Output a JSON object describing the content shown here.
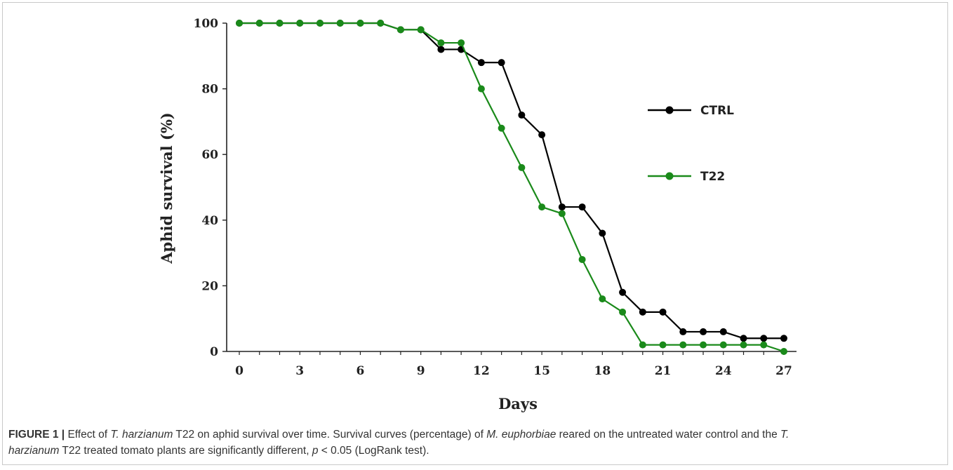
{
  "chart_data": {
    "type": "line",
    "xlabel": "Days",
    "ylabel": "Aphid survival (%)",
    "xlim": [
      0,
      27
    ],
    "ylim": [
      0,
      100
    ],
    "xticks": [
      0,
      3,
      6,
      9,
      12,
      15,
      18,
      21,
      24,
      27
    ],
    "yticks": [
      0,
      20,
      40,
      60,
      80,
      100
    ],
    "x": [
      0,
      1,
      2,
      3,
      4,
      5,
      6,
      7,
      8,
      9,
      10,
      11,
      12,
      13,
      14,
      15,
      16,
      17,
      18,
      19,
      20,
      21,
      22,
      23,
      24,
      25,
      26,
      27
    ],
    "grid": false,
    "legend_position": "top-right",
    "series": [
      {
        "name": "CTRL",
        "color": "#000000",
        "values": [
          100,
          100,
          100,
          100,
          100,
          100,
          100,
          100,
          98,
          98,
          92,
          92,
          88,
          88,
          72,
          66,
          44,
          44,
          36,
          18,
          12,
          12,
          6,
          6,
          6,
          4,
          4,
          4
        ]
      },
      {
        "name": "T22",
        "color": "#1a8a1a",
        "values": [
          100,
          100,
          100,
          100,
          100,
          100,
          100,
          100,
          98,
          98,
          94,
          94,
          80,
          68,
          56,
          44,
          42,
          28,
          16,
          12,
          2,
          2,
          2,
          2,
          2,
          2,
          2,
          0
        ]
      }
    ]
  },
  "caption": {
    "label": "FIGURE 1 |",
    "p1": " Effect of ",
    "i1": "T. harzianum",
    "p2": " T22 on aphid survival over time. Survival curves (percentage) of ",
    "i2": "M. euphorbiae",
    "p3": " reared on the untreated water control and the ",
    "i3": "T.",
    "p4": "",
    "i4": "harzianum",
    "p5": " T22 treated tomato plants are significantly different, ",
    "i5": "p",
    "p6": " < 0.05 (LogRank test)."
  }
}
